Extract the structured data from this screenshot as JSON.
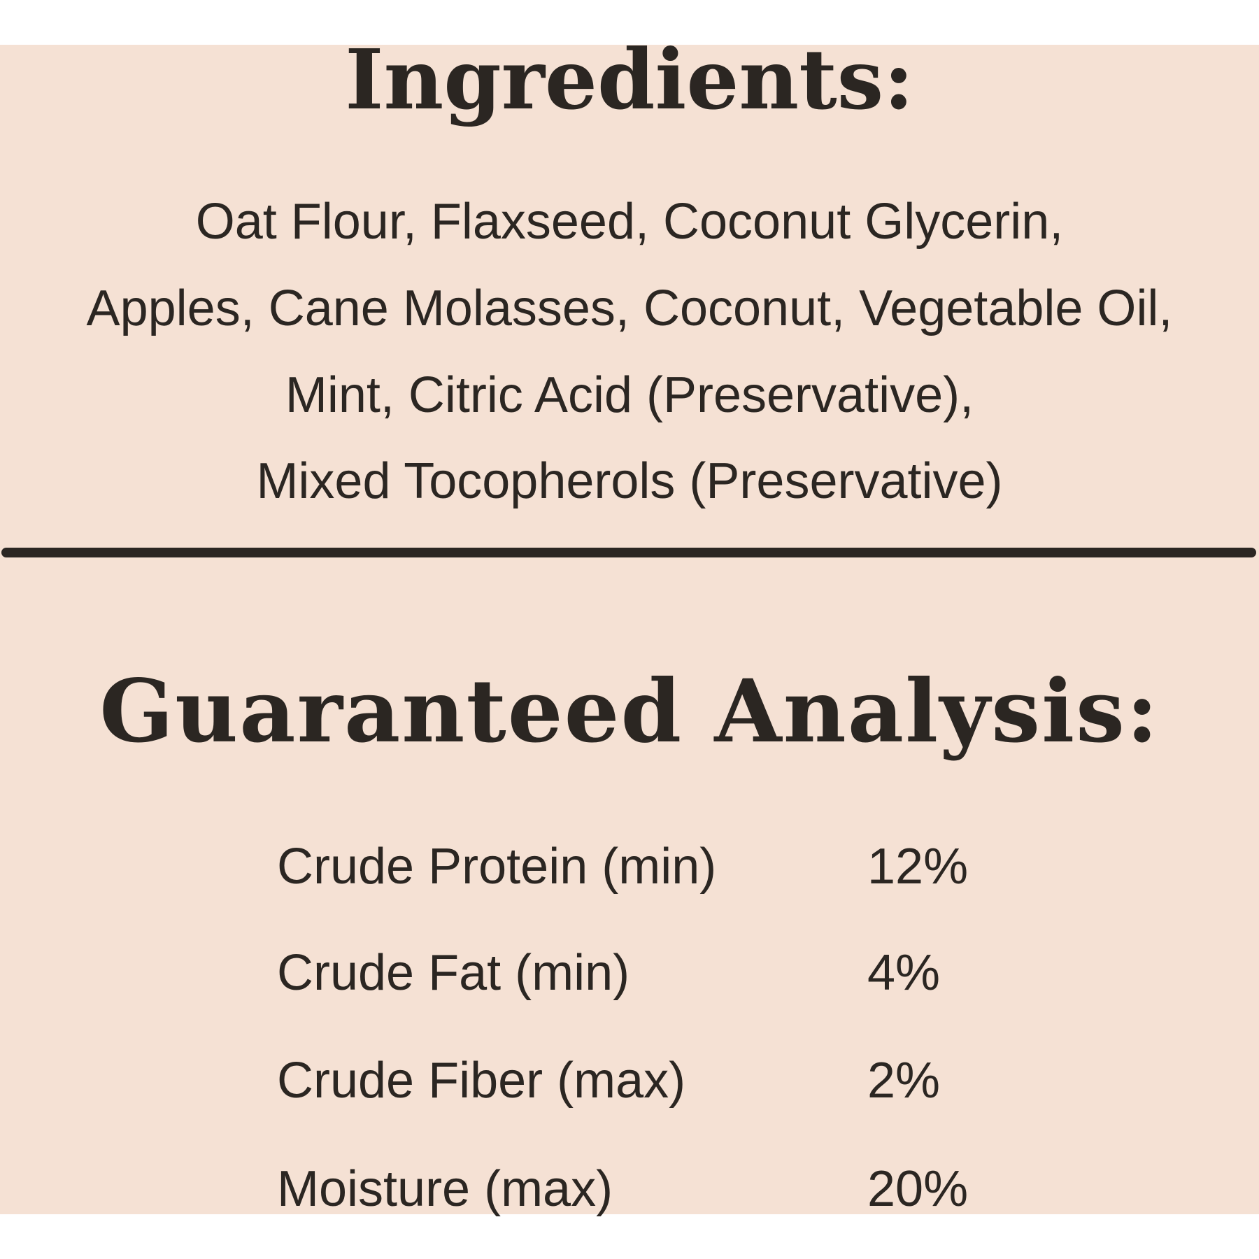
{
  "ingredients": {
    "title": "Ingredients:",
    "lines": [
      "Oat Flour, Flaxseed, Coconut Glycerin,",
      "Apples, Cane Molasses, Coconut, Vegetable Oil,",
      "Mint, Citric Acid (Preservative),",
      "Mixed Tocopherols (Preservative)"
    ]
  },
  "analysis": {
    "title": "Guaranteed Analysis:",
    "rows": [
      {
        "label": "Crude Protein (min)",
        "value": "12%"
      },
      {
        "label": "Crude Fat (min)",
        "value": "4%"
      },
      {
        "label": "Crude Fiber (max)",
        "value": "2%"
      },
      {
        "label": "Moisture (max)",
        "value": "20%"
      }
    ]
  },
  "colors": {
    "background": "#f5e1d4",
    "text": "#2b2622"
  }
}
